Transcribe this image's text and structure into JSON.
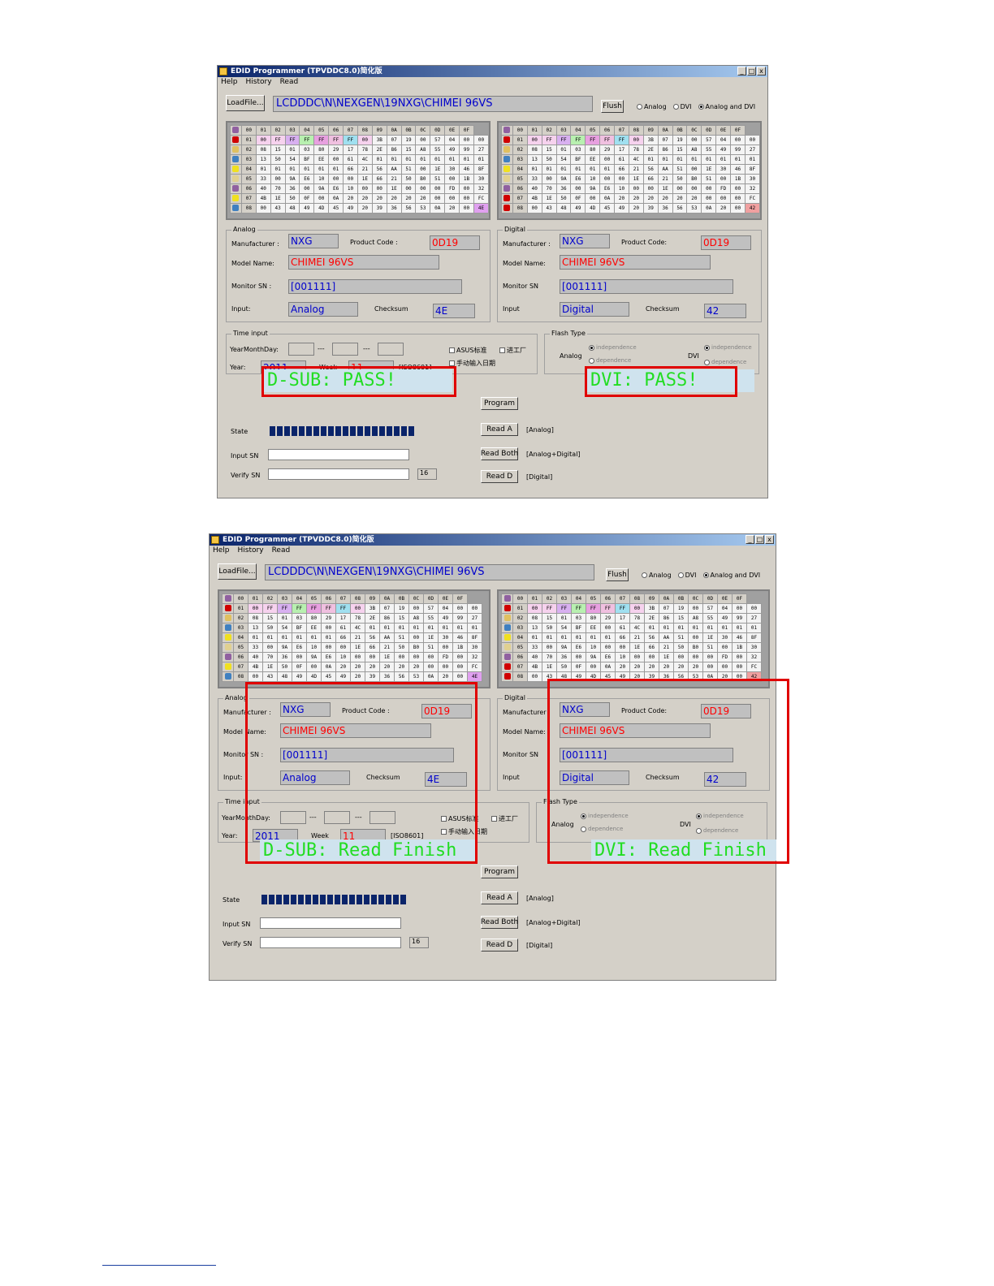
{
  "window": {
    "title": "EDID Programmer (TPVDDC8.0)简化版",
    "menu": [
      "Help",
      "History",
      "Read"
    ],
    "buttons": {
      "minimize": "_",
      "maximize": "□",
      "close": "x"
    }
  },
  "toolbar": {
    "load_label": "LoadFile...",
    "path": "LCDDDC\\N\\NEXGEN\\19NXG\\CHIMEI 96VS",
    "flush_label": "Flush",
    "radios": [
      "Analog",
      "DVI",
      "Analog and DVI"
    ],
    "selected_radio": "Analog and DVI"
  },
  "grid_header": [
    "00",
    "01",
    "02",
    "03",
    "04",
    "05",
    "06",
    "07",
    "08",
    "09",
    "0A",
    "0B",
    "0C",
    "0D",
    "0E",
    "0F"
  ],
  "grid_rows": [
    {
      "label": "01",
      "icon_color": "#d00000",
      "cells": [
        "00",
        "FF",
        "FF",
        "FF",
        "FF",
        "FF",
        "FF",
        "00",
        "3B",
        "07",
        "19",
        "00",
        "57",
        "04",
        "00",
        "00"
      ]
    },
    {
      "label": "02",
      "icon_color": "#e0c060",
      "cells": [
        "08",
        "15",
        "01",
        "03",
        "80",
        "29",
        "17",
        "78",
        "2E",
        "86",
        "15",
        "A8",
        "55",
        "49",
        "99",
        "27"
      ]
    },
    {
      "label": "03",
      "icon_color": "#4080c0",
      "cells": [
        "13",
        "50",
        "54",
        "BF",
        "EE",
        "00",
        "61",
        "4C",
        "01",
        "01",
        "01",
        "01",
        "01",
        "01",
        "01",
        "01"
      ]
    },
    {
      "label": "04",
      "icon_color": "#f0e020",
      "cells": [
        "01",
        "01",
        "01",
        "01",
        "01",
        "01",
        "66",
        "21",
        "56",
        "AA",
        "51",
        "00",
        "1E",
        "30",
        "46",
        "8F"
      ]
    },
    {
      "label": "05",
      "icon_color": "#e0d090",
      "cells": [
        "33",
        "00",
        "9A",
        "E6",
        "10",
        "00",
        "00",
        "1E",
        "66",
        "21",
        "50",
        "B0",
        "51",
        "00",
        "1B",
        "30"
      ]
    },
    {
      "label": "06",
      "icon_color": "#9060a0",
      "cells": [
        "40",
        "70",
        "36",
        "00",
        "9A",
        "E6",
        "10",
        "00",
        "00",
        "1E",
        "00",
        "00",
        "00",
        "FD",
        "00",
        "32"
      ]
    },
    {
      "label": "07",
      "icon_color": "#f0e020",
      "cells": [
        "4B",
        "1E",
        "50",
        "0F",
        "00",
        "0A",
        "20",
        "20",
        "20",
        "20",
        "20",
        "20",
        "00",
        "00",
        "00",
        "FC"
      ]
    },
    {
      "label": "08",
      "icon_color": "#4080c0",
      "cells": [
        "00",
        "43",
        "48",
        "49",
        "4D",
        "45",
        "49",
        "20",
        "39",
        "36",
        "56",
        "53",
        "0A",
        "20",
        "00",
        "4E"
      ]
    }
  ],
  "grid_last_cell_digital": "42",
  "analog": {
    "group_label": "Analog",
    "manufacturer_label": "Manufacturer :",
    "manufacturer": "NXG",
    "product_code_label": "Product Code :",
    "product_code": "0D19",
    "model_name_label": "Model Name:",
    "model_name": "CHIMEI 96VS",
    "monitor_sn_label": "Monitor SN :",
    "monitor_sn": "[001111]",
    "input_label": "Input:",
    "input": "Analog",
    "checksum_label": "Checksum",
    "checksum": "4E"
  },
  "digital": {
    "group_label": "Digital",
    "manufacturer_label": "Manufacturer :",
    "manufacturer": "NXG",
    "product_code_label": "Product Code:",
    "product_code": "0D19",
    "model_name_label": "Model Name:",
    "model_name": "CHIMEI 96VS",
    "monitor_sn_label": "Monitor SN",
    "monitor_sn": "[001111]",
    "input_label": "Input",
    "input": "Digital",
    "checksum_label": "Checksum",
    "checksum": "42"
  },
  "time_input": {
    "group_label": "Time input",
    "ymd_label": "YearMonthDay:",
    "sep": "---",
    "year_label": "Year:",
    "year": "2011",
    "week_label": "Week",
    "week": "11",
    "iso": "[ISO8601]",
    "asus": "ASUS标准",
    "factory": "进工厂",
    "manual": "手动输入日期"
  },
  "flash_type": {
    "group_label": "Flash Type",
    "analog_label": "Analog",
    "dvi_label": "DVI",
    "independence": "independence",
    "dependence": "dependence"
  },
  "actions": {
    "program": "Program",
    "read_a": "Read A",
    "read_a_note": "[Analog]",
    "read_both": "Read Both",
    "read_both_note": "[Analog+Digital]",
    "read_d": "Read D",
    "read_d_note": "[Digital]"
  },
  "bottom": {
    "state_label": "State",
    "input_sn_label": "Input SN",
    "verify_sn_label": "Verify SN",
    "sn_length": "16",
    "progress_blocks": 20
  },
  "status_top": {
    "dsub": "D-SUB: PASS!",
    "dvi": "DVI: PASS!"
  },
  "status_bottom": {
    "dsub": "D-SUB: Read Finish",
    "dvi": "DVI: Read Finish"
  },
  "colors": {
    "status_text": "#22dd22",
    "status_bg": "#cfe3ee",
    "highlight_box": "#e00000",
    "value_blue": "#0000cc",
    "value_red": "#ff0000"
  }
}
